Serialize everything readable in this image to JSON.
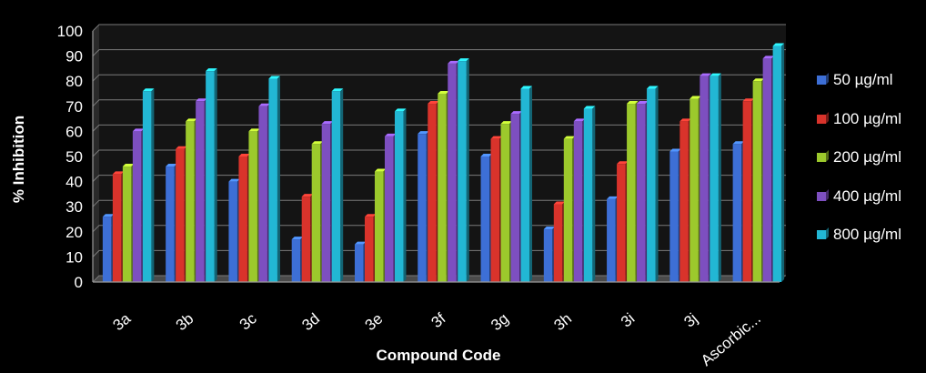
{
  "chart_data": {
    "type": "bar",
    "title": "",
    "xlabel": "Compound Code",
    "ylabel": "% Inhibition",
    "ylim": [
      0,
      100
    ],
    "yticks": [
      0,
      10,
      20,
      30,
      40,
      50,
      60,
      70,
      80,
      90,
      100
    ],
    "grid": true,
    "legend_position": "right",
    "categories": [
      "3a",
      "3b",
      "3c",
      "3d",
      "3e",
      "3f",
      "3g",
      "3h",
      "3i",
      "3j",
      "Ascorbic..."
    ],
    "series": [
      {
        "name": "50 µg/ml",
        "color": "#3d6fd6",
        "values": [
          26,
          46,
          40,
          17,
          15,
          59,
          50,
          21,
          33,
          52,
          55
        ]
      },
      {
        "name": "100 µg/ml",
        "color": "#d9332b",
        "values": [
          43,
          53,
          50,
          34,
          26,
          71,
          57,
          31,
          47,
          64,
          72
        ]
      },
      {
        "name": "200 µg/ml",
        "color": "#9cc92c",
        "values": [
          46,
          64,
          60,
          55,
          44,
          75,
          63,
          57,
          71,
          73,
          80
        ]
      },
      {
        "name": "400 µg/ml",
        "color": "#7d4fc0",
        "values": [
          60,
          72,
          70,
          63,
          58,
          87,
          67,
          64,
          71,
          82,
          89
        ]
      },
      {
        "name": "800 µg/ml",
        "color": "#22b7d4",
        "values": [
          76,
          84,
          81,
          76,
          68,
          88,
          77,
          69,
          77,
          82,
          94
        ]
      }
    ]
  }
}
